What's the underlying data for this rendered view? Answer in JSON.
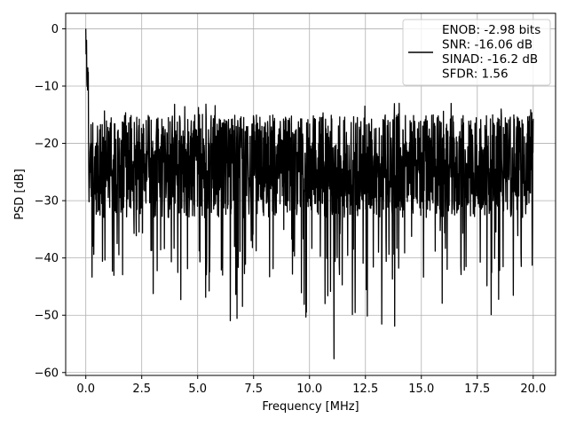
{
  "chart_data": {
    "type": "line",
    "xlabel": "Frequency [MHz]",
    "ylabel": "PSD [dB]",
    "xlim": [
      -0.9,
      21.0
    ],
    "ylim": [
      -60.5,
      2.7
    ],
    "x_ticks": [
      0.0,
      2.5,
      5.0,
      7.5,
      10.0,
      12.5,
      15.0,
      17.5,
      20.0
    ],
    "x_tick_labels": [
      "0.0",
      "2.5",
      "5.0",
      "7.5",
      "10.0",
      "12.5",
      "15.0",
      "17.5",
      "20.0"
    ],
    "y_ticks": [
      0,
      -10,
      -20,
      -30,
      -40,
      -50,
      -60
    ],
    "y_tick_labels": [
      "0",
      "−10",
      "−20",
      "−30",
      "−40",
      "−50",
      "−60"
    ],
    "grid": true,
    "legend_position": "top-right",
    "series": [
      {
        "name": "ENOB: -2.98 bits\nSNR: -16.06 dB\nSINAD: -16.2 dB\nSFDR: 1.56",
        "color": "#000000",
        "x_range": [
          0.0,
          20.0
        ],
        "noise_floor_upper_dB": -15,
        "noise_floor_lower_dB": -33,
        "peak_value_dB": 0,
        "min_value_dB": -57.6,
        "min_value_freq_MHz": 11.1
      }
    ]
  }
}
